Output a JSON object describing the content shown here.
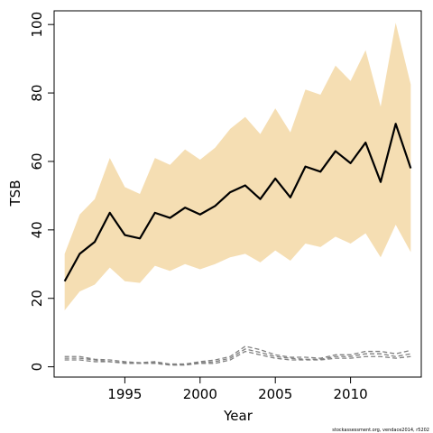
{
  "chart_data": {
    "type": "line",
    "title": "",
    "xlabel": "Year",
    "ylabel": "TSB",
    "xlim": [
      1990.3,
      2014.7
    ],
    "ylim": [
      -3,
      104
    ],
    "grid": false,
    "legend": "none",
    "xticks": [
      1995,
      2000,
      2005,
      2010
    ],
    "yticks": [
      0,
      20,
      40,
      60,
      80,
      100
    ],
    "x": [
      1991,
      1992,
      1993,
      1994,
      1995,
      1996,
      1997,
      1998,
      1999,
      2000,
      2001,
      2002,
      2003,
      2004,
      2005,
      2006,
      2007,
      2008,
      2009,
      2010,
      2011,
      2012,
      2013,
      2014
    ],
    "band": {
      "color": "#f5deb3",
      "lower": [
        16.5,
        22.0,
        24.0,
        29.0,
        25.0,
        24.5,
        29.5,
        28.0,
        30.0,
        28.5,
        30.0,
        32.0,
        33.0,
        30.5,
        34.0,
        31.0,
        36.0,
        35.0,
        38.0,
        36.0,
        39.0,
        32.0,
        41.5,
        33.5
      ],
      "upper": [
        33.0,
        44.5,
        49.0,
        61.0,
        52.5,
        50.5,
        61.0,
        59.0,
        63.5,
        60.5,
        64.0,
        69.5,
        73.0,
        68.0,
        75.5,
        68.5,
        81.0,
        79.5,
        88.0,
        83.5,
        92.5,
        76.0,
        100.5,
        82.5
      ]
    },
    "series": [
      {
        "color": "#000000",
        "style": "solid",
        "values": [
          25.0,
          33.0,
          36.5,
          45.0,
          38.5,
          37.5,
          45.0,
          43.5,
          46.5,
          44.5,
          47.0,
          51.0,
          53.0,
          49.0,
          55.0,
          49.5,
          58.5,
          57.0,
          63.0,
          59.5,
          65.5,
          54.0,
          71.0,
          58.0
        ]
      },
      {
        "color": "#808080",
        "style": "dashed",
        "values": [
          2.0,
          2.0,
          1.5,
          1.5,
          1.0,
          1.0,
          1.0,
          0.5,
          0.5,
          1.0,
          1.0,
          2.0,
          4.5,
          3.5,
          2.5,
          2.0,
          2.0,
          2.0,
          2.5,
          2.5,
          3.0,
          3.0,
          2.5,
          3.0
        ]
      },
      {
        "color": "#808080",
        "style": "dashed",
        "values": [
          2.5,
          2.5,
          2.0,
          1.5,
          1.2,
          1.0,
          1.2,
          0.6,
          0.6,
          1.2,
          1.5,
          2.5,
          5.2,
          4.2,
          3.0,
          2.5,
          2.2,
          2.2,
          3.0,
          3.0,
          3.8,
          3.8,
          3.0,
          3.8
        ]
      },
      {
        "color": "#808080",
        "style": "dashed",
        "values": [
          3.0,
          3.0,
          2.2,
          2.0,
          1.5,
          1.2,
          1.5,
          0.8,
          0.8,
          1.5,
          2.0,
          3.0,
          6.0,
          5.0,
          3.5,
          2.8,
          2.8,
          2.5,
          3.5,
          3.5,
          4.5,
          4.5,
          3.8,
          4.8
        ]
      }
    ],
    "credit": "stockassessment.org, vendace2014, r5202"
  }
}
